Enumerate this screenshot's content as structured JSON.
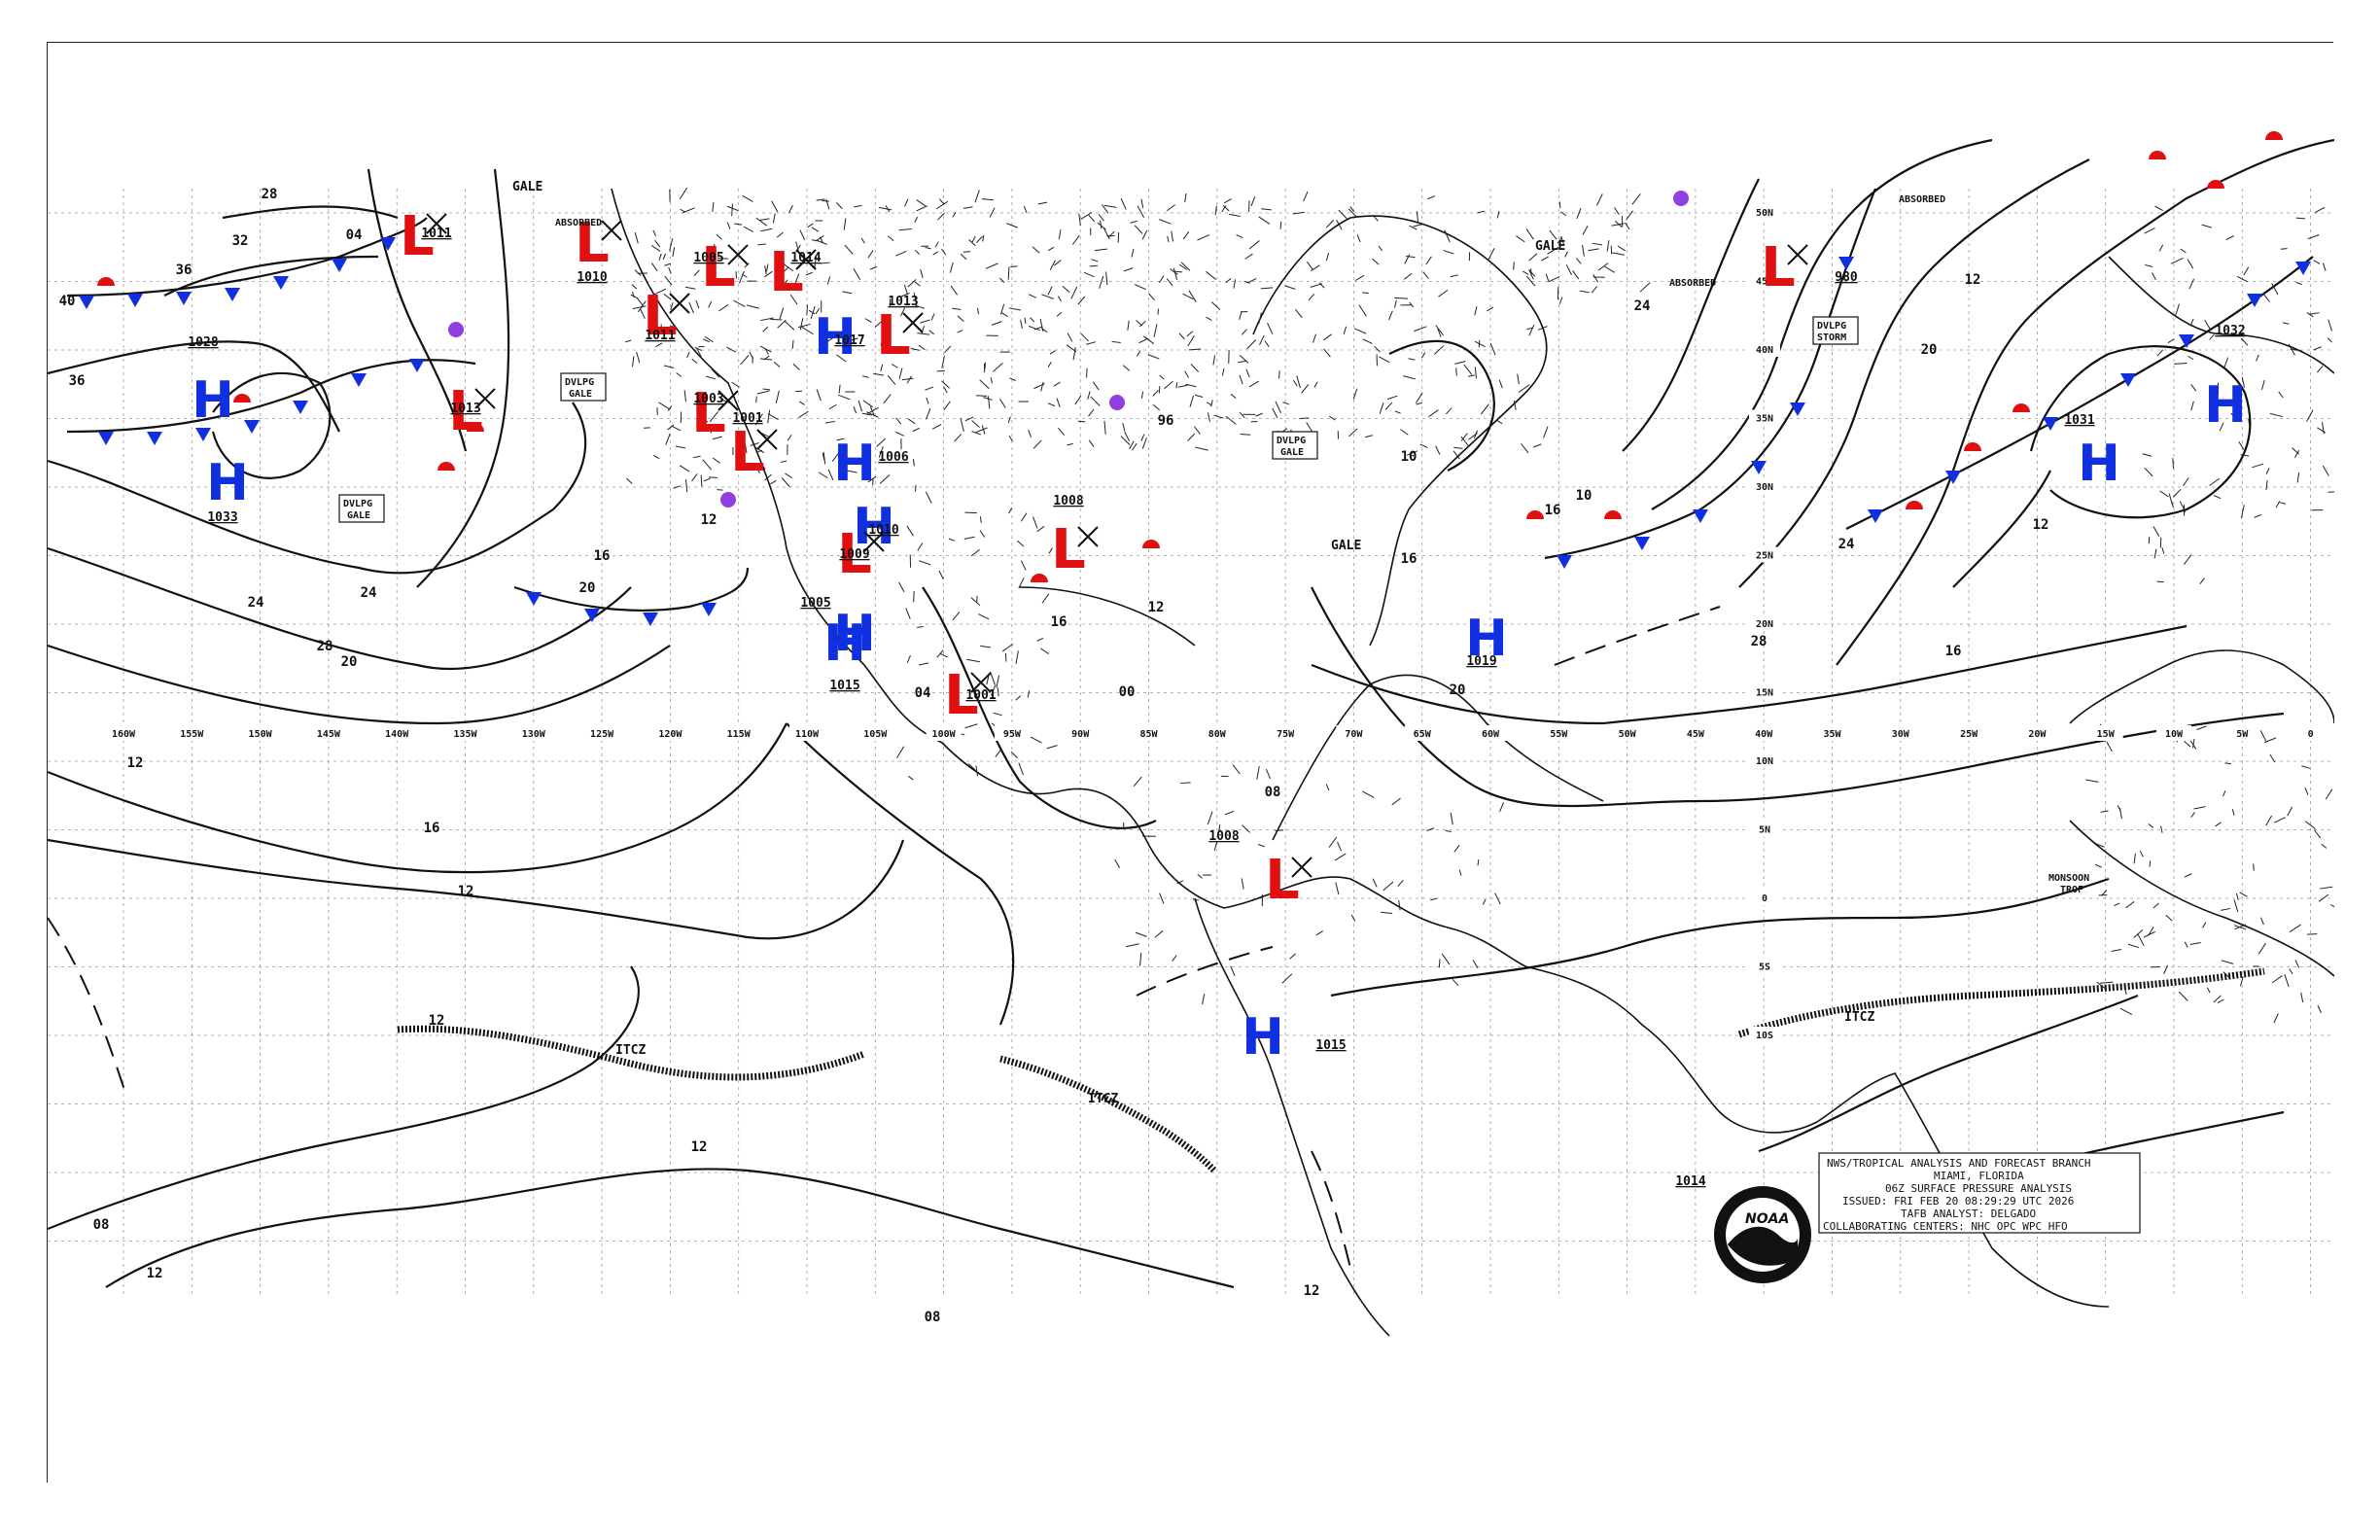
{
  "map": {
    "title_block": {
      "line1": "NWS/TROPICAL ANALYSIS AND FORECAST BRANCH",
      "line2": "MIAMI, FLORIDA",
      "line3": "06Z SURFACE PRESSURE ANALYSIS",
      "line4": "ISSUED: FRI FEB 20 08:29:29 UTC 2026",
      "line5": "TAFB ANALYST: DELGADO",
      "line6": "COLLABORATING CENTERS: NHC OPC WPC HFO"
    },
    "logo_text": "NOAA",
    "longitude_labels": [
      "160W",
      "155W",
      "150W",
      "145W",
      "140W",
      "135W",
      "130W",
      "125W",
      "120W",
      "115W",
      "110W",
      "105W",
      "100W",
      "95W",
      "90W",
      "85W",
      "80W",
      "75W",
      "70W",
      "65W",
      "60W",
      "55W",
      "50W",
      "45W",
      "40W",
      "35W",
      "30W",
      "25W",
      "20W",
      "15W",
      "10W",
      "5W",
      "0"
    ],
    "latitude_labels": [
      "50N",
      "45N",
      "40N",
      "35N",
      "30N",
      "25N",
      "20N",
      "15N",
      "10N",
      "5N",
      "0",
      "5S",
      "10S"
    ],
    "pressure_systems": [
      {
        "type": "L",
        "value": "1011"
      },
      {
        "type": "L",
        "value": "1013"
      },
      {
        "type": "H",
        "value": "1028"
      },
      {
        "type": "H",
        "value": "1033"
      },
      {
        "type": "L",
        "value": "1010"
      },
      {
        "type": "L",
        "value": "1005"
      },
      {
        "type": "L",
        "value": "1014"
      },
      {
        "type": "L",
        "value": "1011"
      },
      {
        "type": "L",
        "value": "1003"
      },
      {
        "type": "L",
        "value": "1001"
      },
      {
        "type": "L",
        "value": "1013"
      },
      {
        "type": "H",
        "value": "1017"
      },
      {
        "type": "H",
        "value": "1006"
      },
      {
        "type": "H",
        "value": "1010"
      },
      {
        "type": "L",
        "value": "1009"
      },
      {
        "type": "H",
        "value": "1005"
      },
      {
        "type": "H",
        "value": "1015"
      },
      {
        "type": "L",
        "value": "1001"
      },
      {
        "type": "L",
        "value": "1008"
      },
      {
        "type": "H",
        "value": "1019"
      },
      {
        "type": "L",
        "value": "1008"
      },
      {
        "type": "H",
        "value": "1015"
      },
      {
        "type": "L",
        "value": "980"
      },
      {
        "type": "H",
        "value": "1031"
      },
      {
        "type": "H",
        "value": "1032"
      },
      {
        "type": "H",
        "value": "1014"
      }
    ],
    "labels": {
      "gale1": "GALE",
      "gale2": "GALE",
      "gale3": "GALE",
      "dvlpg_gale1": "DVLPG",
      "dvlpg_gale1b": "GALE",
      "dvlpg_gale2": "DVLPG",
      "dvlpg_gale2b": "GALE",
      "dvlpg_gale3": "DVLPG",
      "dvlpg_gale3b": "GALE",
      "dvlpg_storm": "DVLPG",
      "dvlpg_stormb": "STORM",
      "absorbed1": "ABSORBED",
      "absorbed2": "ABSORBED",
      "absorbed3": "ABSORBED",
      "itcz1": "ITCZ",
      "itcz2": "ITCZ",
      "itcz3": "ITCZ",
      "monsoon": "MONSOON",
      "trof": "TROF"
    },
    "isobar_labels": [
      "28",
      "32",
      "36",
      "36",
      "40",
      "04",
      "12",
      "16",
      "20",
      "24",
      "28",
      "24",
      "20",
      "16",
      "12",
      "12",
      "12",
      "12",
      "08",
      "12",
      "16",
      "20",
      "24",
      "16",
      "20",
      "24",
      "28",
      "12",
      "12",
      "08",
      "04",
      "00",
      "96",
      "10",
      "10",
      "16",
      "16",
      "12",
      "08",
      "12"
    ]
  },
  "colors": {
    "low": "#e01010",
    "high": "#1030e0",
    "occluded": "#9040e0"
  }
}
